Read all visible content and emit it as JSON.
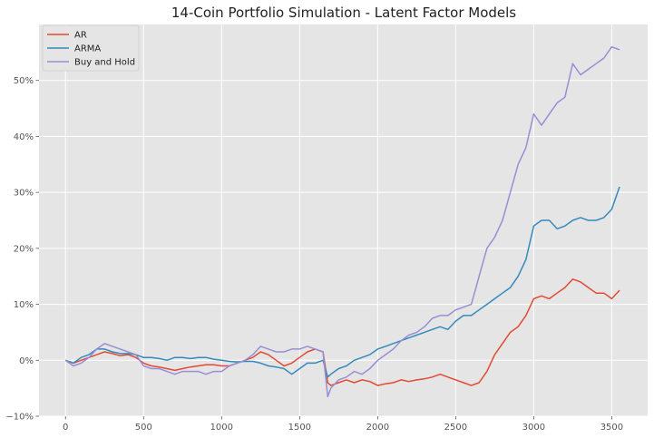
{
  "chart_data": {
    "type": "line",
    "title": "14-Coin Portfolio Simulation - Latent Factor Models",
    "xlabel": "",
    "ylabel": "",
    "xlim": [
      -170,
      3730
    ],
    "ylim": [
      -0.1,
      0.6
    ],
    "x_ticks": [
      0,
      500,
      1000,
      1500,
      2000,
      2500,
      3000,
      3500
    ],
    "x_tick_labels": [
      "0",
      "500",
      "1000",
      "1500",
      "2000",
      "2500",
      "3000",
      "3500"
    ],
    "y_ticks": [
      -0.1,
      0.0,
      0.1,
      0.2,
      0.3,
      0.4,
      0.5
    ],
    "y_tick_labels": [
      "−10%",
      "0%",
      "10%",
      "20%",
      "30%",
      "40%",
      "50%"
    ],
    "grid": true,
    "legend_position": "top-left",
    "series": [
      {
        "name": "AR",
        "color": "#e24a33",
        "points": [
          [
            0,
            0.0
          ],
          [
            50,
            -0.005
          ],
          [
            100,
            0.0
          ],
          [
            150,
            0.005
          ],
          [
            200,
            0.01
          ],
          [
            250,
            0.015
          ],
          [
            300,
            0.012
          ],
          [
            350,
            0.008
          ],
          [
            400,
            0.01
          ],
          [
            450,
            0.005
          ],
          [
            500,
            -0.005
          ],
          [
            550,
            -0.01
          ],
          [
            600,
            -0.012
          ],
          [
            650,
            -0.015
          ],
          [
            700,
            -0.018
          ],
          [
            750,
            -0.015
          ],
          [
            800,
            -0.012
          ],
          [
            850,
            -0.01
          ],
          [
            900,
            -0.008
          ],
          [
            950,
            -0.008
          ],
          [
            1000,
            -0.01
          ],
          [
            1050,
            -0.01
          ],
          [
            1100,
            -0.005
          ],
          [
            1150,
            0.0
          ],
          [
            1200,
            0.005
          ],
          [
            1250,
            0.015
          ],
          [
            1300,
            0.01
          ],
          [
            1350,
            0.0
          ],
          [
            1400,
            -0.01
          ],
          [
            1450,
            -0.005
          ],
          [
            1500,
            0.005
          ],
          [
            1550,
            0.015
          ],
          [
            1600,
            0.02
          ],
          [
            1650,
            0.015
          ],
          [
            1680,
            -0.04
          ],
          [
            1700,
            -0.045
          ],
          [
            1750,
            -0.04
          ],
          [
            1800,
            -0.035
          ],
          [
            1850,
            -0.04
          ],
          [
            1900,
            -0.035
          ],
          [
            1950,
            -0.038
          ],
          [
            2000,
            -0.045
          ],
          [
            2050,
            -0.042
          ],
          [
            2100,
            -0.04
          ],
          [
            2150,
            -0.035
          ],
          [
            2200,
            -0.038
          ],
          [
            2250,
            -0.035
          ],
          [
            2300,
            -0.033
          ],
          [
            2350,
            -0.03
          ],
          [
            2400,
            -0.025
          ],
          [
            2450,
            -0.03
          ],
          [
            2500,
            -0.035
          ],
          [
            2550,
            -0.04
          ],
          [
            2600,
            -0.045
          ],
          [
            2650,
            -0.04
          ],
          [
            2700,
            -0.02
          ],
          [
            2750,
            0.01
          ],
          [
            2800,
            0.03
          ],
          [
            2850,
            0.05
          ],
          [
            2900,
            0.06
          ],
          [
            2950,
            0.08
          ],
          [
            3000,
            0.11
          ],
          [
            3050,
            0.115
          ],
          [
            3100,
            0.11
          ],
          [
            3150,
            0.12
          ],
          [
            3200,
            0.13
          ],
          [
            3250,
            0.145
          ],
          [
            3300,
            0.14
          ],
          [
            3350,
            0.13
          ],
          [
            3400,
            0.12
          ],
          [
            3450,
            0.12
          ],
          [
            3500,
            0.11
          ],
          [
            3550,
            0.125
          ]
        ]
      },
      {
        "name": "ARMA",
        "color": "#348abd",
        "points": [
          [
            0,
            0.0
          ],
          [
            50,
            -0.005
          ],
          [
            100,
            0.005
          ],
          [
            150,
            0.01
          ],
          [
            200,
            0.02
          ],
          [
            250,
            0.02
          ],
          [
            300,
            0.015
          ],
          [
            350,
            0.012
          ],
          [
            400,
            0.012
          ],
          [
            450,
            0.01
          ],
          [
            500,
            0.005
          ],
          [
            550,
            0.005
          ],
          [
            600,
            0.003
          ],
          [
            650,
            0.0
          ],
          [
            700,
            0.005
          ],
          [
            750,
            0.005
          ],
          [
            800,
            0.003
          ],
          [
            850,
            0.005
          ],
          [
            900,
            0.005
          ],
          [
            950,
            0.002
          ],
          [
            1000,
            0.0
          ],
          [
            1050,
            -0.002
          ],
          [
            1100,
            -0.003
          ],
          [
            1150,
            -0.002
          ],
          [
            1200,
            -0.002
          ],
          [
            1250,
            -0.005
          ],
          [
            1300,
            -0.01
          ],
          [
            1350,
            -0.012
          ],
          [
            1400,
            -0.015
          ],
          [
            1450,
            -0.025
          ],
          [
            1500,
            -0.015
          ],
          [
            1550,
            -0.005
          ],
          [
            1600,
            -0.005
          ],
          [
            1650,
            0.0
          ],
          [
            1680,
            -0.03
          ],
          [
            1700,
            -0.025
          ],
          [
            1750,
            -0.015
          ],
          [
            1800,
            -0.01
          ],
          [
            1850,
            0.0
          ],
          [
            1900,
            0.005
          ],
          [
            1950,
            0.01
          ],
          [
            2000,
            0.02
          ],
          [
            2050,
            0.025
          ],
          [
            2100,
            0.03
          ],
          [
            2150,
            0.035
          ],
          [
            2200,
            0.04
          ],
          [
            2250,
            0.045
          ],
          [
            2300,
            0.05
          ],
          [
            2350,
            0.055
          ],
          [
            2400,
            0.06
          ],
          [
            2450,
            0.055
          ],
          [
            2500,
            0.07
          ],
          [
            2550,
            0.08
          ],
          [
            2600,
            0.08
          ],
          [
            2650,
            0.09
          ],
          [
            2700,
            0.1
          ],
          [
            2750,
            0.11
          ],
          [
            2800,
            0.12
          ],
          [
            2850,
            0.13
          ],
          [
            2900,
            0.15
          ],
          [
            2950,
            0.18
          ],
          [
            3000,
            0.24
          ],
          [
            3050,
            0.25
          ],
          [
            3100,
            0.25
          ],
          [
            3150,
            0.235
          ],
          [
            3200,
            0.24
          ],
          [
            3250,
            0.25
          ],
          [
            3300,
            0.255
          ],
          [
            3350,
            0.25
          ],
          [
            3400,
            0.25
          ],
          [
            3450,
            0.255
          ],
          [
            3500,
            0.27
          ],
          [
            3550,
            0.31
          ]
        ]
      },
      {
        "name": "Buy and Hold",
        "color": "#988ed5",
        "points": [
          [
            0,
            0.0
          ],
          [
            50,
            -0.01
          ],
          [
            100,
            -0.005
          ],
          [
            150,
            0.005
          ],
          [
            200,
            0.02
          ],
          [
            250,
            0.03
          ],
          [
            300,
            0.025
          ],
          [
            350,
            0.02
          ],
          [
            400,
            0.015
          ],
          [
            450,
            0.01
          ],
          [
            500,
            -0.01
          ],
          [
            550,
            -0.015
          ],
          [
            600,
            -0.015
          ],
          [
            650,
            -0.02
          ],
          [
            700,
            -0.025
          ],
          [
            750,
            -0.02
          ],
          [
            800,
            -0.02
          ],
          [
            850,
            -0.02
          ],
          [
            900,
            -0.025
          ],
          [
            950,
            -0.02
          ],
          [
            1000,
            -0.02
          ],
          [
            1050,
            -0.01
          ],
          [
            1100,
            -0.005
          ],
          [
            1150,
            0.0
          ],
          [
            1200,
            0.01
          ],
          [
            1250,
            0.025
          ],
          [
            1300,
            0.02
          ],
          [
            1350,
            0.015
          ],
          [
            1400,
            0.015
          ],
          [
            1450,
            0.02
          ],
          [
            1500,
            0.02
          ],
          [
            1550,
            0.025
          ],
          [
            1600,
            0.02
          ],
          [
            1650,
            0.015
          ],
          [
            1680,
            -0.065
          ],
          [
            1700,
            -0.05
          ],
          [
            1750,
            -0.035
          ],
          [
            1800,
            -0.03
          ],
          [
            1850,
            -0.02
          ],
          [
            1900,
            -0.025
          ],
          [
            1950,
            -0.015
          ],
          [
            2000,
            0.0
          ],
          [
            2050,
            0.01
          ],
          [
            2100,
            0.02
          ],
          [
            2150,
            0.035
          ],
          [
            2200,
            0.045
          ],
          [
            2250,
            0.05
          ],
          [
            2300,
            0.06
          ],
          [
            2350,
            0.075
          ],
          [
            2400,
            0.08
          ],
          [
            2450,
            0.08
          ],
          [
            2500,
            0.09
          ],
          [
            2550,
            0.095
          ],
          [
            2600,
            0.1
          ],
          [
            2650,
            0.15
          ],
          [
            2700,
            0.2
          ],
          [
            2750,
            0.22
          ],
          [
            2800,
            0.25
          ],
          [
            2850,
            0.3
          ],
          [
            2900,
            0.35
          ],
          [
            2950,
            0.38
          ],
          [
            3000,
            0.44
          ],
          [
            3050,
            0.42
          ],
          [
            3100,
            0.44
          ],
          [
            3150,
            0.46
          ],
          [
            3200,
            0.47
          ],
          [
            3250,
            0.53
          ],
          [
            3300,
            0.51
          ],
          [
            3350,
            0.52
          ],
          [
            3400,
            0.53
          ],
          [
            3450,
            0.54
          ],
          [
            3500,
            0.56
          ],
          [
            3550,
            0.555
          ]
        ]
      }
    ]
  }
}
